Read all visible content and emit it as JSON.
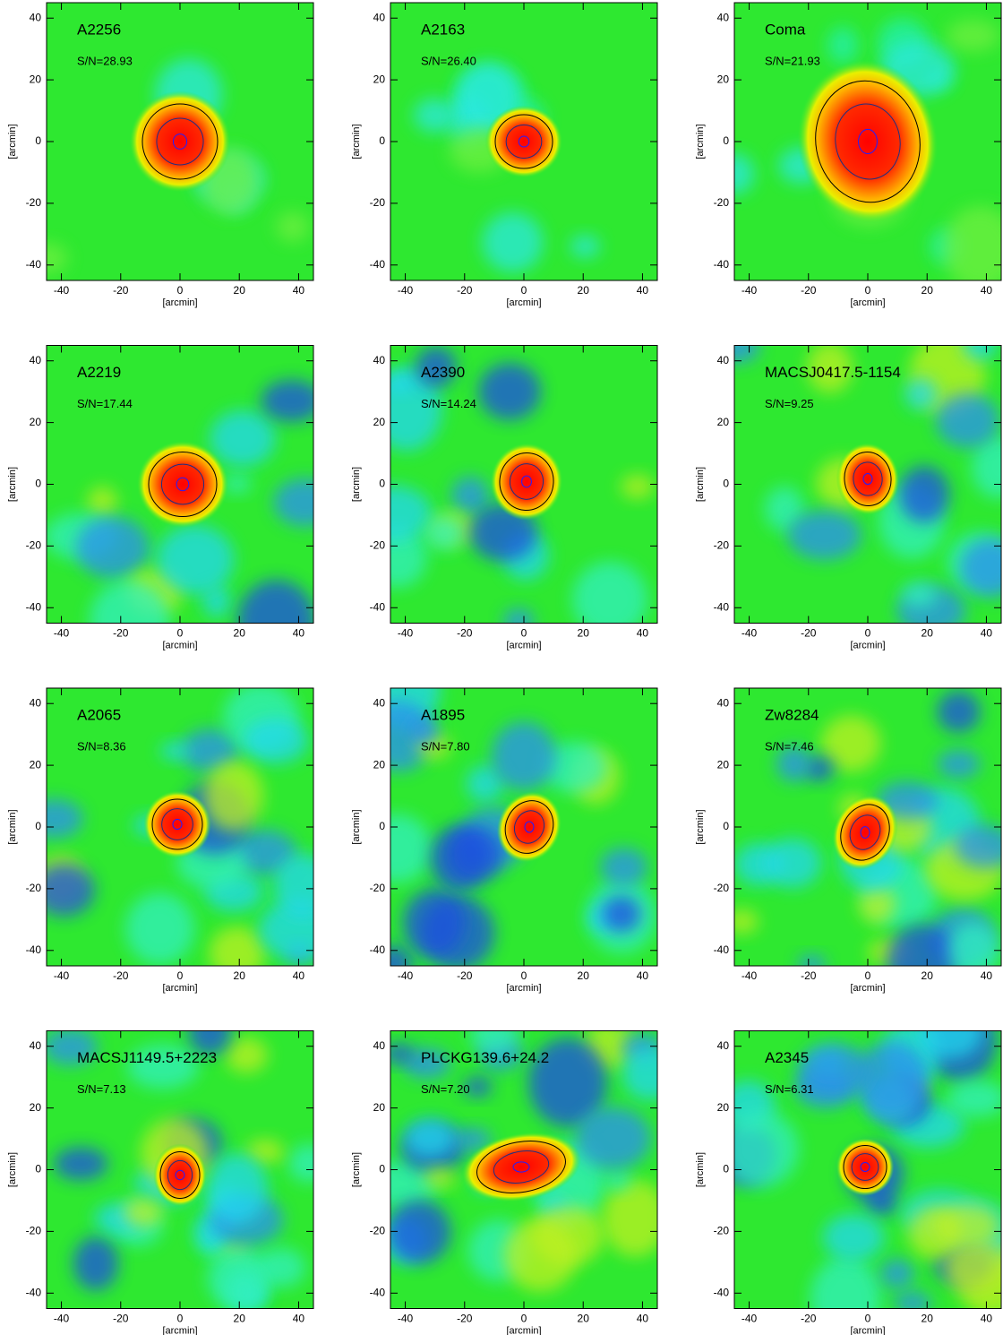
{
  "chart_data": [
    {
      "type": "heatmap",
      "title": "A2256",
      "annotation": "S/N=28.93",
      "xlabel": "[arcmin]",
      "ylabel": "[arcmin]",
      "xlim": [
        -45,
        45
      ],
      "ylim": [
        -45,
        45
      ],
      "xticks": [
        -40,
        -20,
        0,
        20,
        40
      ],
      "yticks": [
        -40,
        -20,
        0,
        20,
        40
      ]
    },
    {
      "type": "heatmap",
      "title": "A2163",
      "annotation": "S/N=26.40",
      "xlabel": "[arcmin]",
      "ylabel": "[arcmin]",
      "xlim": [
        -45,
        45
      ],
      "ylim": [
        -45,
        45
      ],
      "xticks": [
        -40,
        -20,
        0,
        20,
        40
      ],
      "yticks": [
        -40,
        -20,
        0,
        20,
        40
      ]
    },
    {
      "type": "heatmap",
      "title": "Coma",
      "annotation": "S/N=21.93",
      "xlabel": "[arcmin]",
      "ylabel": "[arcmin]",
      "xlim": [
        -45,
        45
      ],
      "ylim": [
        -45,
        45
      ],
      "xticks": [
        -40,
        -20,
        0,
        20,
        40
      ],
      "yticks": [
        -40,
        -20,
        0,
        20,
        40
      ]
    },
    {
      "type": "heatmap",
      "title": "A2219",
      "annotation": "S/N=17.44",
      "xlabel": "[arcmin]",
      "ylabel": "[arcmin]",
      "xlim": [
        -45,
        45
      ],
      "ylim": [
        -45,
        45
      ],
      "xticks": [
        -40,
        -20,
        0,
        20,
        40
      ],
      "yticks": [
        -40,
        -20,
        0,
        20,
        40
      ]
    },
    {
      "type": "heatmap",
      "title": "A2390",
      "annotation": "S/N=14.24",
      "xlabel": "[arcmin]",
      "ylabel": "[arcmin]",
      "xlim": [
        -45,
        45
      ],
      "ylim": [
        -45,
        45
      ],
      "xticks": [
        -40,
        -20,
        0,
        20,
        40
      ],
      "yticks": [
        -40,
        -20,
        0,
        20,
        40
      ]
    },
    {
      "type": "heatmap",
      "title": "MACSJ0417.5-1154",
      "annotation": "S/N=9.25",
      "xlabel": "[arcmin]",
      "ylabel": "[arcmin]",
      "xlim": [
        -45,
        45
      ],
      "ylim": [
        -45,
        45
      ],
      "xticks": [
        -40,
        -20,
        0,
        20,
        40
      ],
      "yticks": [
        -40,
        -20,
        0,
        20,
        40
      ]
    },
    {
      "type": "heatmap",
      "title": "A2065",
      "annotation": "S/N=8.36",
      "xlabel": "[arcmin]",
      "ylabel": "[arcmin]",
      "xlim": [
        -45,
        45
      ],
      "ylim": [
        -45,
        45
      ],
      "xticks": [
        -40,
        -20,
        0,
        20,
        40
      ],
      "yticks": [
        -40,
        -20,
        0,
        20,
        40
      ]
    },
    {
      "type": "heatmap",
      "title": "A1895",
      "annotation": "S/N=7.80",
      "xlabel": "[arcmin]",
      "ylabel": "[arcmin]",
      "xlim": [
        -45,
        45
      ],
      "ylim": [
        -45,
        45
      ],
      "xticks": [
        -40,
        -20,
        0,
        20,
        40
      ],
      "yticks": [
        -40,
        -20,
        0,
        20,
        40
      ]
    },
    {
      "type": "heatmap",
      "title": "Zw8284",
      "annotation": "S/N=7.46",
      "xlabel": "[arcmin]",
      "ylabel": "[arcmin]",
      "xlim": [
        -45,
        45
      ],
      "ylim": [
        -45,
        45
      ],
      "xticks": [
        -40,
        -20,
        0,
        20,
        40
      ],
      "yticks": [
        -40,
        -20,
        0,
        20,
        40
      ]
    },
    {
      "type": "heatmap",
      "title": "MACSJ1149.5+2223",
      "annotation": "S/N=7.13",
      "xlabel": "[arcmin]",
      "ylabel": "[arcmin]",
      "xlim": [
        -45,
        45
      ],
      "ylim": [
        -45,
        45
      ],
      "xticks": [
        -40,
        -20,
        0,
        20,
        40
      ],
      "yticks": [
        -40,
        -20,
        0,
        20,
        40
      ]
    },
    {
      "type": "heatmap",
      "title": "PLCKG139.6+24.2",
      "annotation": "S/N=7.20",
      "xlabel": "[arcmin]",
      "ylabel": "[arcmin]",
      "xlim": [
        -45,
        45
      ],
      "ylim": [
        -45,
        45
      ],
      "xticks": [
        -40,
        -20,
        0,
        20,
        40
      ],
      "yticks": [
        -40,
        -20,
        0,
        20,
        40
      ]
    },
    {
      "type": "heatmap",
      "title": "A2345",
      "annotation": "S/N=6.31",
      "xlabel": "[arcmin]",
      "ylabel": "[arcmin]",
      "xlim": [
        -45,
        45
      ],
      "ylim": [
        -45,
        45
      ],
      "xticks": [
        -40,
        -20,
        0,
        20,
        40
      ],
      "yticks": [
        -40,
        -20,
        0,
        20,
        40
      ]
    }
  ]
}
